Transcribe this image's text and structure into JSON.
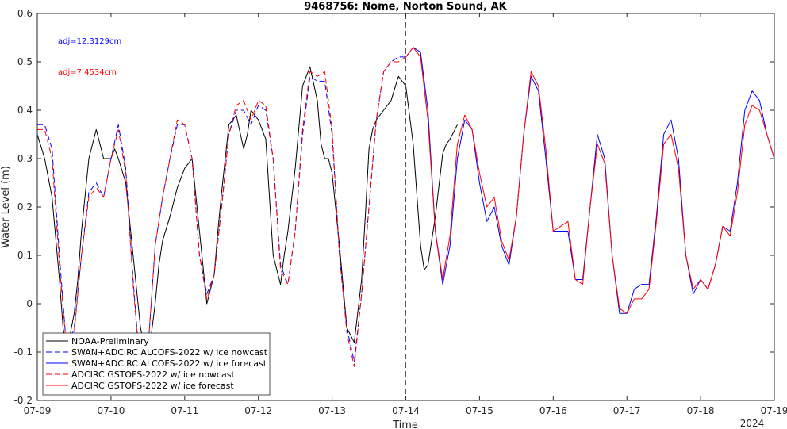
{
  "chart_data": {
    "type": "line",
    "title": "9468756: Nome, Norton Sound, AK",
    "xlabel": "Time",
    "ylabel": "Water Level (m)",
    "x_ticks": [
      "07-09",
      "07-10",
      "07-11",
      "07-12",
      "07-13",
      "07-14",
      "07-15",
      "07-16",
      "07-17",
      "07-18",
      "07-19"
    ],
    "x_year_label": "2024",
    "xlim": [
      0,
      10
    ],
    "ylim": [
      -0.2,
      0.6
    ],
    "y_ticks": [
      -0.2,
      -0.1,
      0,
      0.1,
      0.2,
      0.3,
      0.4,
      0.5,
      0.6
    ],
    "nowcast_forecast_divider": 5,
    "annotations": [
      {
        "text": "adj=12.3129cm",
        "color": "#0000ff"
      },
      {
        "text": "adj=7.4534cm",
        "color": "#ff0000"
      }
    ],
    "legend_position": "bottom-left",
    "series": [
      {
        "name": "NOAA-Preliminary",
        "color": "#000000",
        "style": "solid",
        "x": [
          0.0,
          0.1,
          0.2,
          0.3,
          0.35,
          0.4,
          0.45,
          0.5,
          0.55,
          0.6,
          0.7,
          0.8,
          0.85,
          0.9,
          1.0,
          1.05,
          1.1,
          1.2,
          1.3,
          1.4,
          1.5,
          1.55,
          1.6,
          1.65,
          1.7,
          1.8,
          1.9,
          2.0,
          2.1,
          2.2,
          2.3,
          2.4,
          2.45,
          2.5,
          2.6,
          2.7,
          2.8,
          2.85,
          2.9,
          3.0,
          3.1,
          3.2,
          3.3,
          3.35,
          3.4,
          3.5,
          3.6,
          3.7,
          3.8,
          3.85,
          3.9,
          3.95,
          4.0,
          4.1,
          4.2,
          4.3,
          4.4,
          4.45,
          4.5,
          4.55,
          4.6,
          4.7,
          4.8,
          4.9,
          5.0,
          5.1,
          5.2,
          5.25,
          5.3,
          5.4,
          5.5,
          5.55,
          5.6,
          5.7
        ],
        "y": [
          0.35,
          0.3,
          0.22,
          0.05,
          -0.05,
          -0.1,
          -0.06,
          -0.02,
          0.05,
          0.15,
          0.3,
          0.36,
          0.33,
          0.3,
          0.3,
          0.32,
          0.3,
          0.25,
          0.1,
          -0.05,
          -0.12,
          -0.06,
          0.0,
          0.08,
          0.13,
          0.18,
          0.24,
          0.28,
          0.3,
          0.15,
          0.0,
          0.06,
          0.15,
          0.23,
          0.37,
          0.39,
          0.32,
          0.35,
          0.4,
          0.38,
          0.34,
          0.1,
          0.04,
          0.1,
          0.15,
          0.28,
          0.45,
          0.49,
          0.42,
          0.33,
          0.3,
          0.3,
          0.27,
          0.12,
          -0.05,
          -0.08,
          0.05,
          0.18,
          0.32,
          0.36,
          0.38,
          0.4,
          0.42,
          0.47,
          0.45,
          0.33,
          0.12,
          0.07,
          0.08,
          0.18,
          0.31,
          0.33,
          0.34,
          0.37
        ]
      },
      {
        "name": "SWAN+ADCIRC ALCOFS-2022 w/ ice nowcast",
        "color": "#0000ff",
        "style": "dashed",
        "x": [
          0.0,
          0.1,
          0.2,
          0.3,
          0.4,
          0.5,
          0.6,
          0.7,
          0.8,
          0.9,
          1.0,
          1.1,
          1.2,
          1.3,
          1.4,
          1.5,
          1.6,
          1.7,
          1.8,
          1.9,
          2.0,
          2.1,
          2.2,
          2.3,
          2.4,
          2.5,
          2.6,
          2.7,
          2.8,
          2.9,
          3.0,
          3.1,
          3.2,
          3.3,
          3.4,
          3.5,
          3.6,
          3.7,
          3.8,
          3.9,
          4.0,
          4.1,
          4.2,
          4.3,
          4.4,
          4.5,
          4.6,
          4.7,
          4.8,
          4.9,
          5.0
        ],
        "y": [
          0.37,
          0.37,
          0.32,
          0.1,
          -0.1,
          -0.05,
          0.1,
          0.23,
          0.25,
          0.22,
          0.3,
          0.37,
          0.28,
          0.05,
          -0.15,
          -0.1,
          0.12,
          0.22,
          0.3,
          0.37,
          0.37,
          0.3,
          0.1,
          0.02,
          0.06,
          0.2,
          0.35,
          0.4,
          0.4,
          0.37,
          0.41,
          0.4,
          0.3,
          0.08,
          0.04,
          0.15,
          0.35,
          0.47,
          0.46,
          0.46,
          0.35,
          0.1,
          -0.05,
          -0.12,
          0.02,
          0.2,
          0.38,
          0.48,
          0.5,
          0.51,
          0.51
        ]
      },
      {
        "name": "SWAN+ADCIRC ALCOFS-2022 w/ ice forecast",
        "color": "#0000ff",
        "style": "solid",
        "x": [
          5.0,
          5.1,
          5.2,
          5.3,
          5.4,
          5.5,
          5.6,
          5.7,
          5.8,
          5.9,
          6.0,
          6.1,
          6.2,
          6.3,
          6.4,
          6.5,
          6.6,
          6.7,
          6.8,
          6.9,
          7.0,
          7.1,
          7.2,
          7.3,
          7.4,
          7.5,
          7.6,
          7.7,
          7.8,
          7.9,
          8.0,
          8.1,
          8.2,
          8.3,
          8.4,
          8.5,
          8.6,
          8.7,
          8.8,
          8.9,
          9.0,
          9.1,
          9.2,
          9.3,
          9.4,
          9.5,
          9.6,
          9.7,
          9.8,
          9.9,
          10.0
        ],
        "y": [
          0.51,
          0.53,
          0.52,
          0.4,
          0.15,
          0.04,
          0.12,
          0.3,
          0.38,
          0.36,
          0.25,
          0.17,
          0.2,
          0.12,
          0.08,
          0.18,
          0.35,
          0.47,
          0.44,
          0.3,
          0.15,
          0.15,
          0.15,
          0.05,
          0.05,
          0.2,
          0.35,
          0.3,
          0.1,
          -0.02,
          -0.02,
          0.03,
          0.04,
          0.04,
          0.18,
          0.35,
          0.38,
          0.3,
          0.1,
          0.02,
          0.05,
          0.03,
          0.08,
          0.16,
          0.15,
          0.25,
          0.4,
          0.44,
          0.42,
          0.35,
          0.3
        ]
      },
      {
        "name": "ADCIRC GSTOFS-2022 w/ ice nowcast",
        "color": "#ff0000",
        "style": "dashed",
        "x": [
          0.0,
          0.1,
          0.2,
          0.3,
          0.4,
          0.5,
          0.6,
          0.7,
          0.8,
          0.9,
          1.0,
          1.1,
          1.2,
          1.3,
          1.4,
          1.5,
          1.6,
          1.7,
          1.8,
          1.9,
          2.0,
          2.1,
          2.2,
          2.3,
          2.4,
          2.5,
          2.6,
          2.7,
          2.8,
          2.9,
          3.0,
          3.1,
          3.2,
          3.3,
          3.4,
          3.5,
          3.6,
          3.7,
          3.8,
          3.9,
          4.0,
          4.1,
          4.2,
          4.3,
          4.4,
          4.5,
          4.6,
          4.7,
          4.8,
          4.9,
          5.0
        ],
        "y": [
          0.36,
          0.36,
          0.3,
          0.08,
          -0.1,
          -0.06,
          0.1,
          0.22,
          0.24,
          0.22,
          0.3,
          0.36,
          0.27,
          0.04,
          -0.15,
          -0.1,
          0.12,
          0.22,
          0.3,
          0.38,
          0.37,
          0.3,
          0.1,
          0.01,
          0.06,
          0.2,
          0.35,
          0.41,
          0.42,
          0.38,
          0.42,
          0.41,
          0.3,
          0.07,
          0.04,
          0.15,
          0.36,
          0.48,
          0.47,
          0.48,
          0.36,
          0.1,
          -0.06,
          -0.13,
          0.02,
          0.2,
          0.38,
          0.48,
          0.5,
          0.5,
          0.51
        ]
      },
      {
        "name": "ADCIRC GSTOFS-2022 w/ ice forecast",
        "color": "#ff0000",
        "style": "solid",
        "x": [
          5.0,
          5.1,
          5.2,
          5.3,
          5.4,
          5.5,
          5.6,
          5.7,
          5.8,
          5.9,
          6.0,
          6.1,
          6.2,
          6.3,
          6.4,
          6.5,
          6.6,
          6.7,
          6.8,
          6.9,
          7.0,
          7.1,
          7.2,
          7.3,
          7.4,
          7.5,
          7.6,
          7.7,
          7.8,
          7.9,
          8.0,
          8.1,
          8.2,
          8.3,
          8.4,
          8.5,
          8.6,
          8.7,
          8.8,
          8.9,
          9.0,
          9.1,
          9.2,
          9.3,
          9.4,
          9.5,
          9.6,
          9.7,
          9.8,
          9.9,
          10.0
        ],
        "y": [
          0.51,
          0.53,
          0.51,
          0.38,
          0.15,
          0.05,
          0.14,
          0.33,
          0.39,
          0.36,
          0.27,
          0.2,
          0.22,
          0.13,
          0.09,
          0.18,
          0.35,
          0.48,
          0.45,
          0.32,
          0.15,
          0.16,
          0.17,
          0.05,
          0.04,
          0.2,
          0.33,
          0.29,
          0.1,
          -0.01,
          -0.02,
          0.01,
          0.01,
          0.03,
          0.17,
          0.33,
          0.35,
          0.28,
          0.1,
          0.03,
          0.05,
          0.03,
          0.08,
          0.16,
          0.14,
          0.23,
          0.37,
          0.41,
          0.4,
          0.35,
          0.3
        ]
      }
    ]
  }
}
